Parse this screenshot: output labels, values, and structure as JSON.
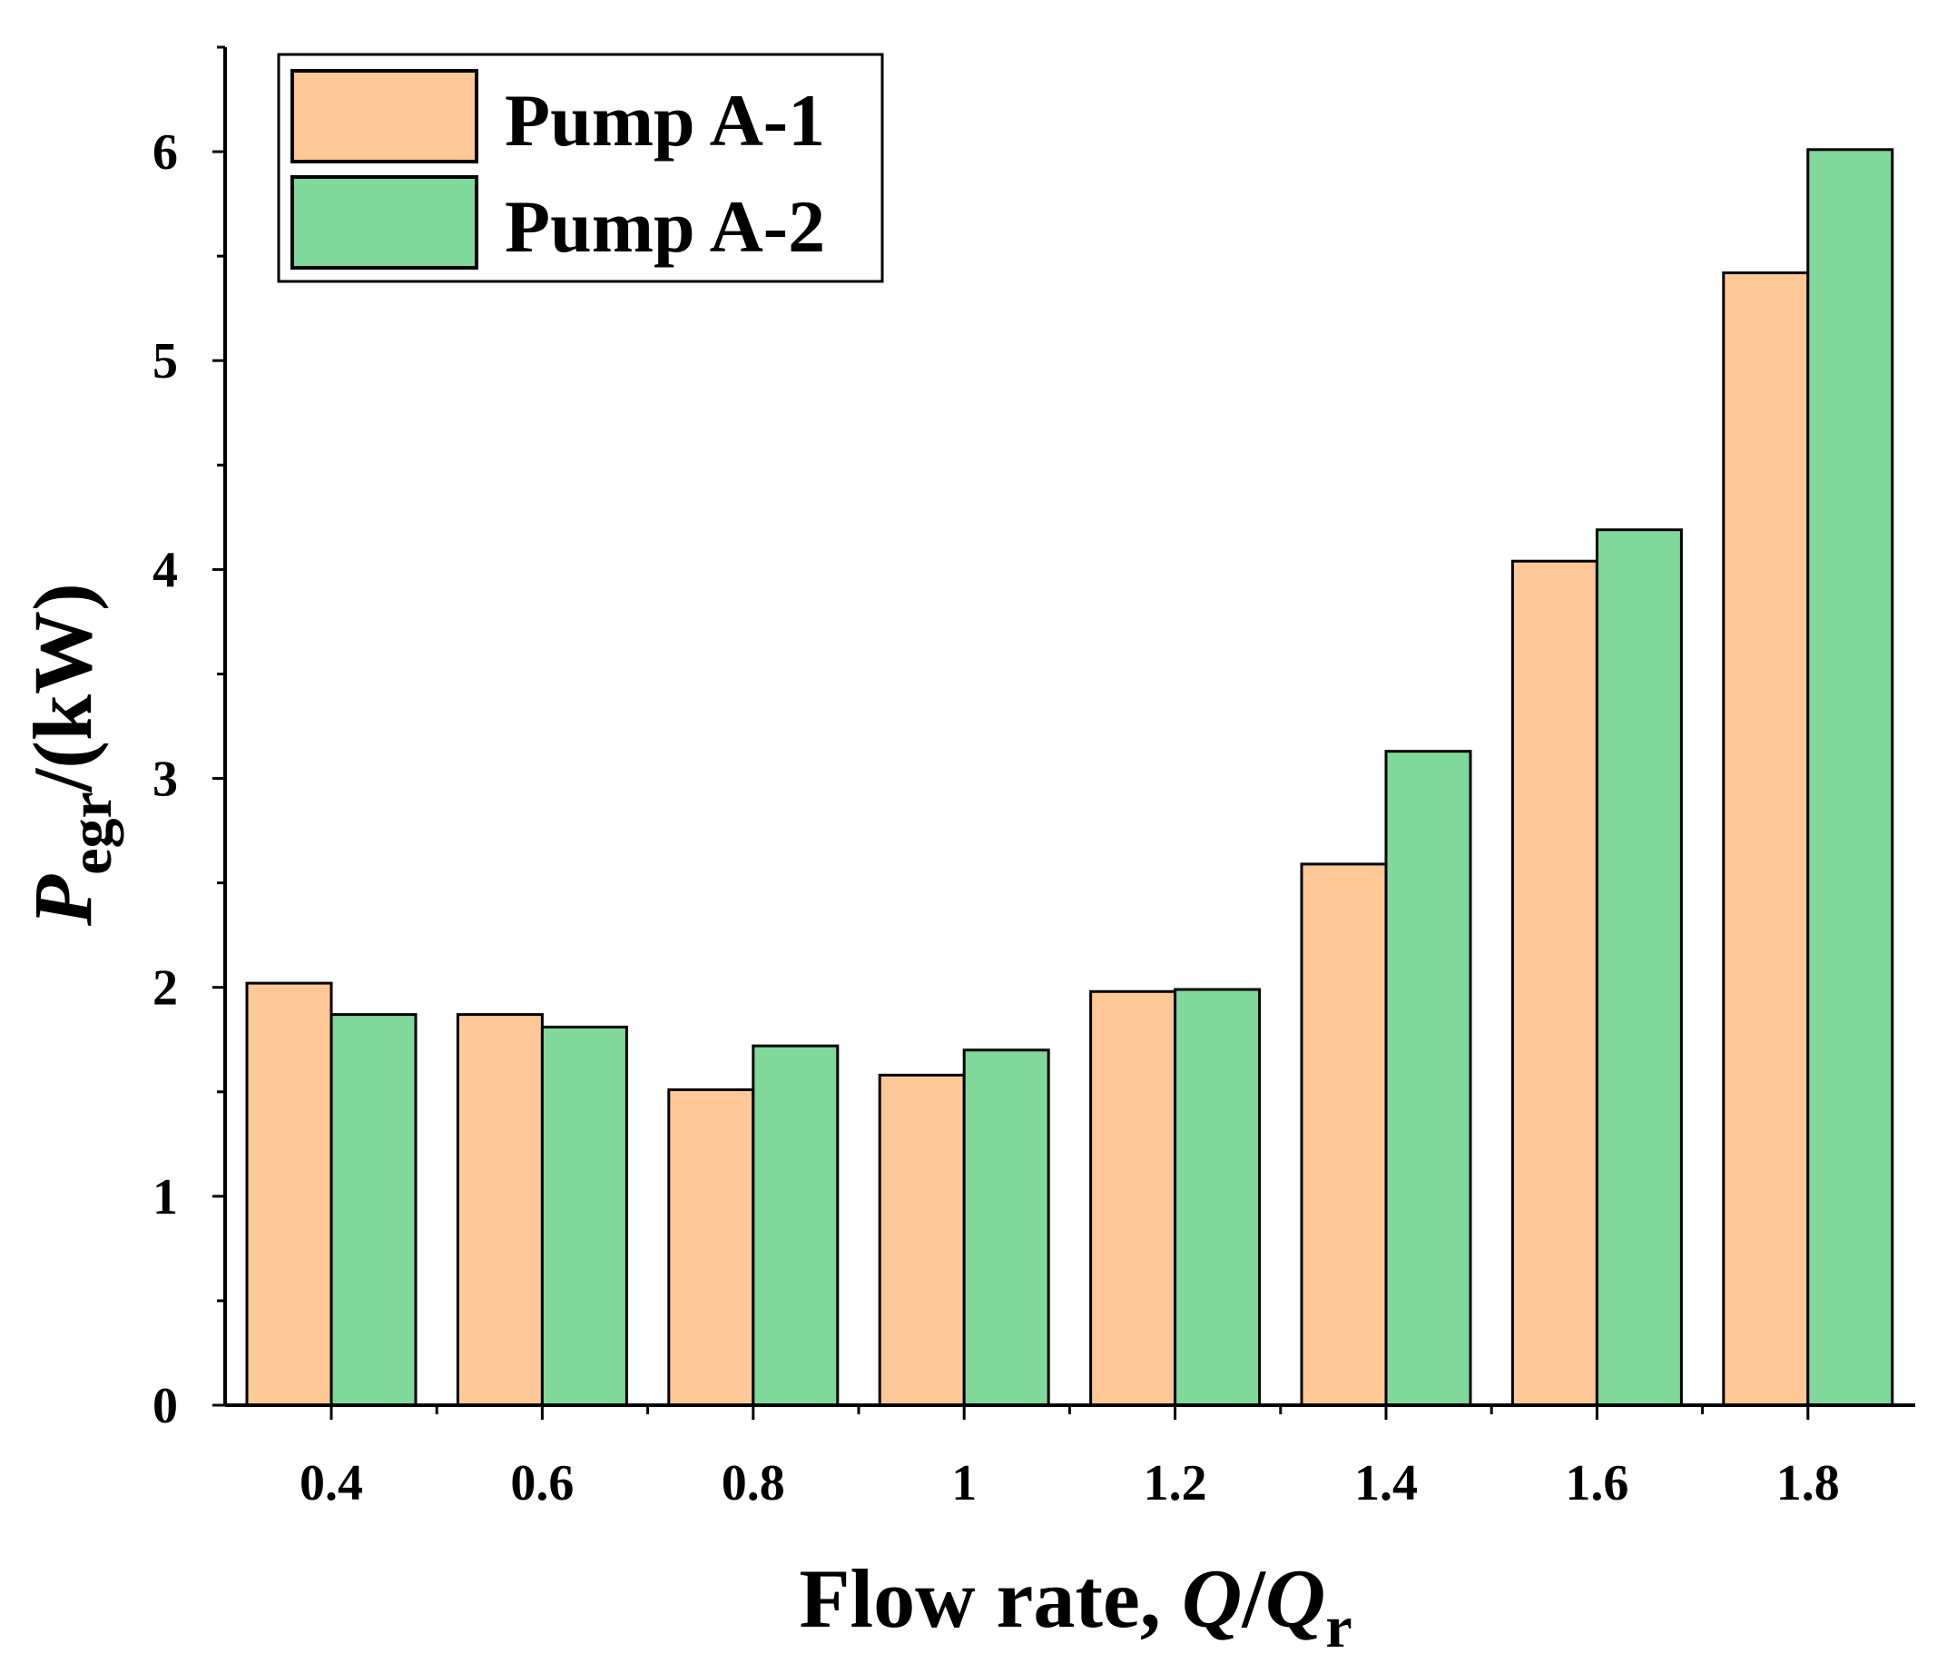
{
  "chart_data": {
    "type": "bar",
    "title": "",
    "categories": [
      "0.4",
      "0.6",
      "0.8",
      "1",
      "1.2",
      "1.4",
      "1.6",
      "1.8"
    ],
    "series": [
      {
        "name": "Pump A-1",
        "color": "#FFC896",
        "values": [
          2.02,
          1.87,
          1.51,
          1.58,
          1.98,
          2.59,
          4.04,
          5.42
        ]
      },
      {
        "name": "Pump A-2",
        "color": "#80D89A",
        "values": [
          1.87,
          1.81,
          1.72,
          1.7,
          1.99,
          3.13,
          4.19,
          6.01
        ]
      }
    ],
    "xlabel": {
      "text": "Flow rate, ",
      "var": "Q",
      "slash": "/",
      "var2": "Q",
      "sub": "r"
    },
    "ylabel": {
      "var": "P",
      "sub": "egr",
      "unit": "/(kW)"
    },
    "ylim": [
      0,
      6.5
    ],
    "yticks": [
      "0",
      "1",
      "2",
      "3",
      "4",
      "5",
      "6"
    ],
    "legend_position": "top-left",
    "grid": false
  }
}
